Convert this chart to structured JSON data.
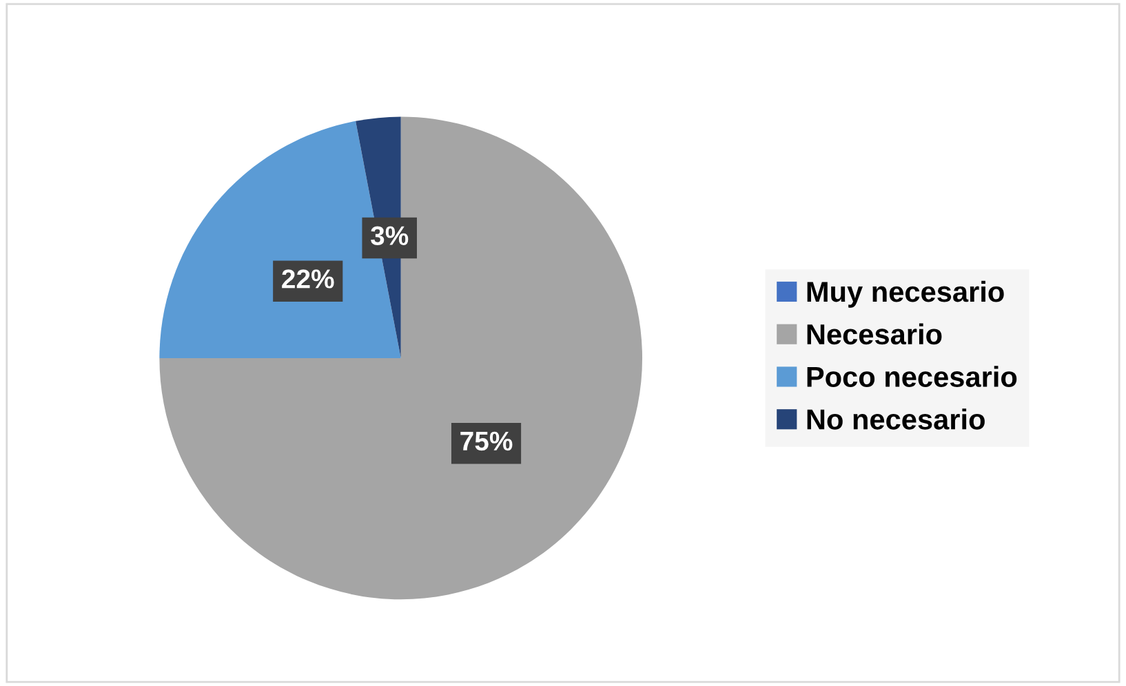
{
  "chart_data": {
    "type": "pie",
    "categories": [
      "Muy necesario",
      "Necesario",
      "Poco necesario",
      "No necesario"
    ],
    "values": [
      0,
      75,
      22,
      3
    ],
    "colors": [
      "#4472c4",
      "#a5a5a5",
      "#5b9bd5",
      "#264478"
    ],
    "value_labels": [
      null,
      "75%",
      "22%",
      "3%"
    ],
    "legend": "right"
  }
}
